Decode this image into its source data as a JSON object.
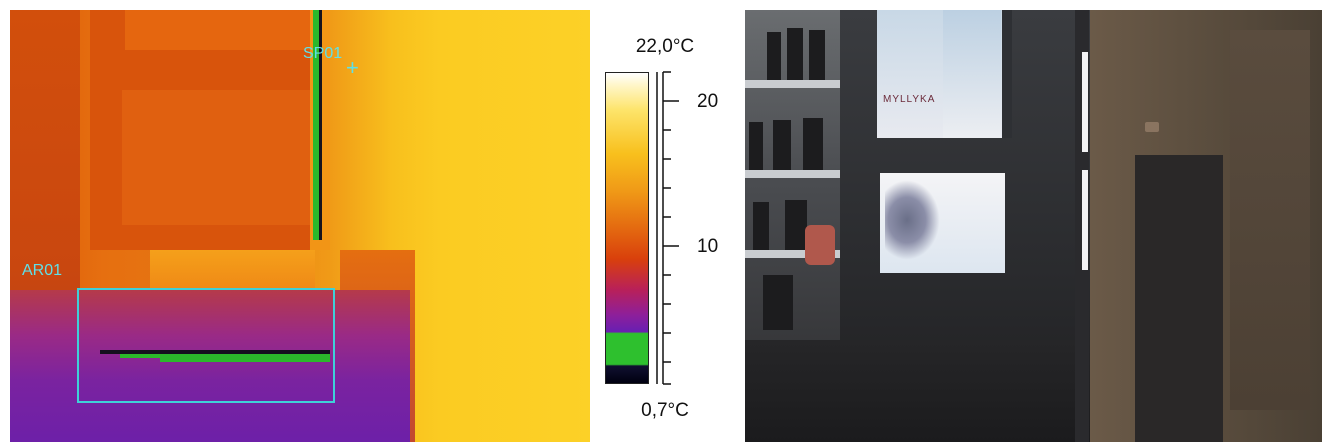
{
  "thermal": {
    "spot_label": "SP01",
    "area_label": "AR01"
  },
  "scale": {
    "max_label": "22,0°C",
    "min_label": "0,7°C",
    "tick_labels": [
      "20",
      "10"
    ]
  },
  "visual": {
    "sign_text": "MYLLYKA"
  }
}
